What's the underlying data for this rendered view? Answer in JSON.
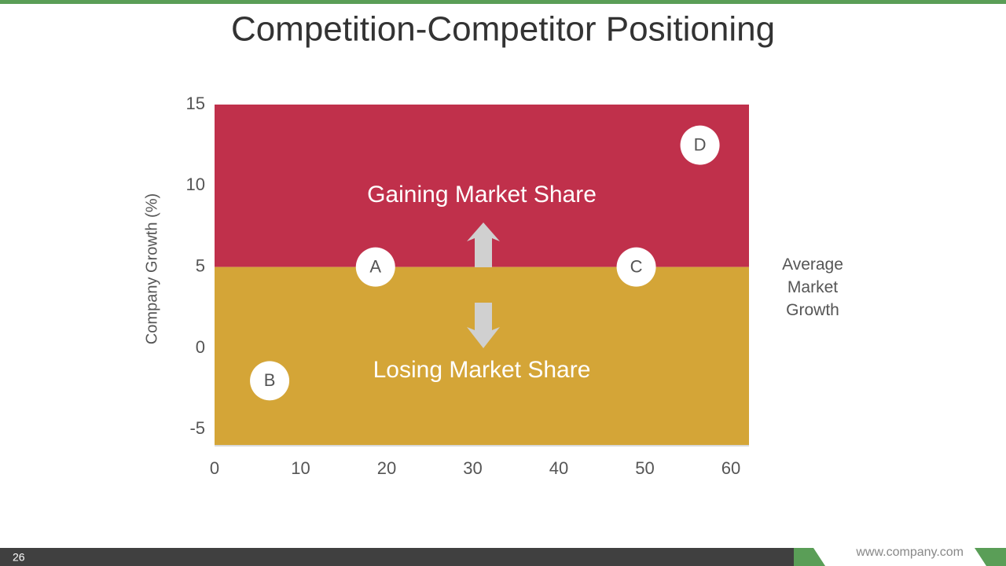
{
  "chart_data": {
    "type": "scatter",
    "title": "Competition-Competitor Positioning",
    "ylabel": "Company Growth (%)",
    "xlim": [
      0,
      60
    ],
    "xticks": [
      0,
      10,
      20,
      30,
      40,
      50,
      60
    ],
    "ylim": [
      -6,
      15
    ],
    "yticks": [
      15,
      10,
      5,
      0,
      -5
    ],
    "threshold": 5,
    "regions": {
      "upper": {
        "label": "Gaining Market Share",
        "color": "#c0304b"
      },
      "lower": {
        "label": "Losing Market Share",
        "color": "#d4a537"
      }
    },
    "threshold_label": "Average Market Growth",
    "series": [
      {
        "labels": [
          "A",
          "B",
          "C",
          "D"
        ],
        "x": [
          18.7,
          6.4,
          49,
          56.4
        ],
        "y": [
          5,
          -2,
          5,
          12.5
        ],
        "color": "#ffffff"
      }
    ]
  },
  "footer": {
    "page": "26",
    "url": "www.company.com"
  }
}
